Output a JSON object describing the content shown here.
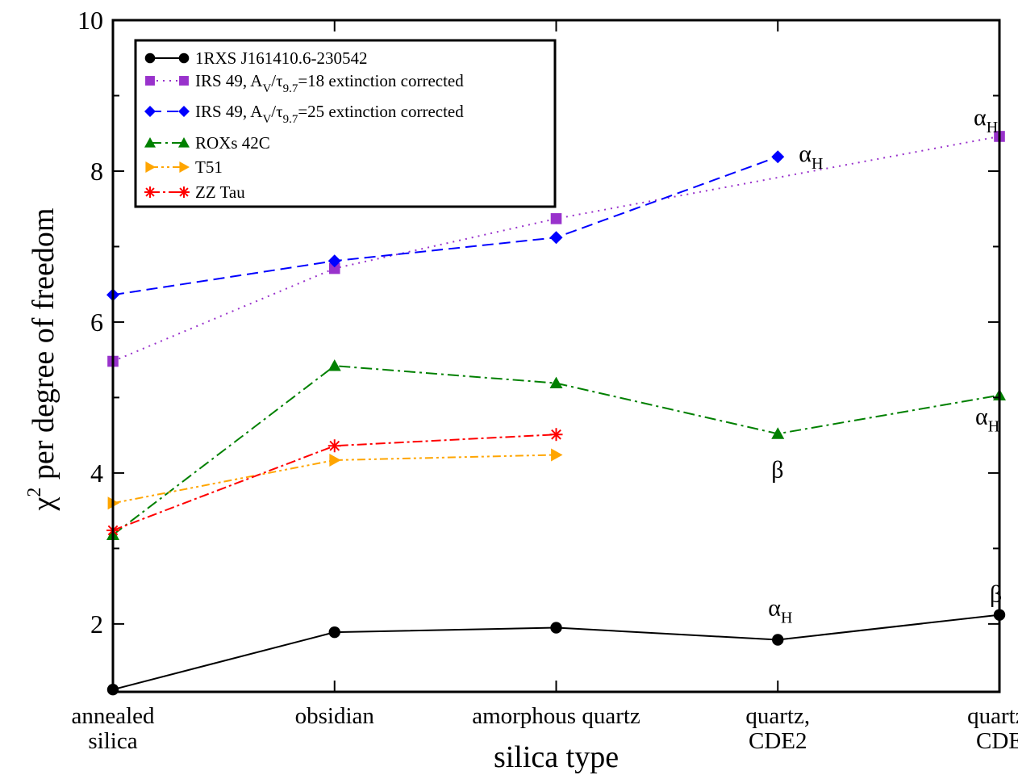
{
  "chart_data": {
    "type": "line",
    "title": "",
    "xlabel": "silica type",
    "ylabel_symbol": "χ",
    "ylabel_sup": "2",
    "ylabel_text": " per degree of freedom",
    "ylim": [
      1.1,
      10
    ],
    "yticks": [
      2,
      4,
      6,
      8,
      10
    ],
    "grid": false,
    "legend_position": "top-left",
    "categories": [
      [
        "annealed",
        "silica"
      ],
      [
        "obsidian"
      ],
      [
        "amorphous quartz"
      ],
      [
        "quartz,",
        "CDE2"
      ],
      [
        "quartz,",
        "CDE"
      ]
    ],
    "series": [
      {
        "name": "1RXS J161410.6-230542",
        "legend_parts": [
          {
            "t": "1RXS J161410.6-230542",
            "s": "n"
          }
        ],
        "color": "#000000",
        "marker": "circle",
        "dash": "",
        "values": [
          1.13,
          1.89,
          1.95,
          1.79,
          2.12
        ]
      },
      {
        "name": "IRS 49, AV/τ9.7=18 extinction corrected",
        "legend_parts": [
          {
            "t": "IRS 49, A",
            "s": "n"
          },
          {
            "t": "V",
            "s": "sub"
          },
          {
            "t": "/τ",
            "s": "n"
          },
          {
            "t": "9.7",
            "s": "sub"
          },
          {
            "t": "=18 extinction corrected",
            "s": "n"
          }
        ],
        "color": "#9932cc",
        "marker": "square",
        "dash": "2,6",
        "values": [
          5.48,
          6.71,
          7.37,
          null,
          8.46
        ]
      },
      {
        "name": "IRS 49, AV/τ9.7=25 extinction corrected",
        "legend_parts": [
          {
            "t": "IRS 49, A",
            "s": "n"
          },
          {
            "t": "V",
            "s": "sub"
          },
          {
            "t": "/τ",
            "s": "n"
          },
          {
            "t": "9.7",
            "s": "sub"
          },
          {
            "t": "=25 extinction corrected",
            "s": "n"
          }
        ],
        "color": "#0000ff",
        "marker": "diamond",
        "dash": "14,7",
        "values": [
          6.36,
          6.81,
          7.12,
          8.19,
          null
        ]
      },
      {
        "name": "ROXs 42C",
        "legend_parts": [
          {
            "t": "ROXs 42C",
            "s": "n"
          }
        ],
        "color": "#008000",
        "marker": "triangle-up",
        "dash": "14,5,3,5",
        "values": [
          3.18,
          5.42,
          5.19,
          4.52,
          5.03
        ]
      },
      {
        "name": "T51",
        "legend_parts": [
          {
            "t": "T51",
            "s": "n"
          }
        ],
        "color": "#ffa500",
        "marker": "triangle-right",
        "dash": "10,4,3,4,3,4",
        "values": [
          3.6,
          4.17,
          4.24,
          null,
          null
        ]
      },
      {
        "name": "ZZ Tau",
        "legend_parts": [
          {
            "t": "ZZ Tau",
            "s": "n"
          }
        ],
        "color": "#ff0000",
        "marker": "asterisk",
        "dash": "12,4,3,4",
        "values": [
          3.24,
          4.36,
          4.51,
          null,
          null
        ]
      }
    ],
    "annotations": [
      {
        "main": "α",
        "sub": "H",
        "series": 2,
        "category": 3
      },
      {
        "main": "α",
        "sub": "H",
        "series": 1,
        "category": 4
      },
      {
        "main": "α",
        "sub": "H",
        "series": 3,
        "category": 4
      },
      {
        "main": "β",
        "sub": "",
        "series": 3,
        "category": 3
      },
      {
        "main": "α",
        "sub": "H",
        "series": 0,
        "category": 3
      },
      {
        "main": "β",
        "sub": "",
        "series": 0,
        "category": 4
      }
    ]
  }
}
